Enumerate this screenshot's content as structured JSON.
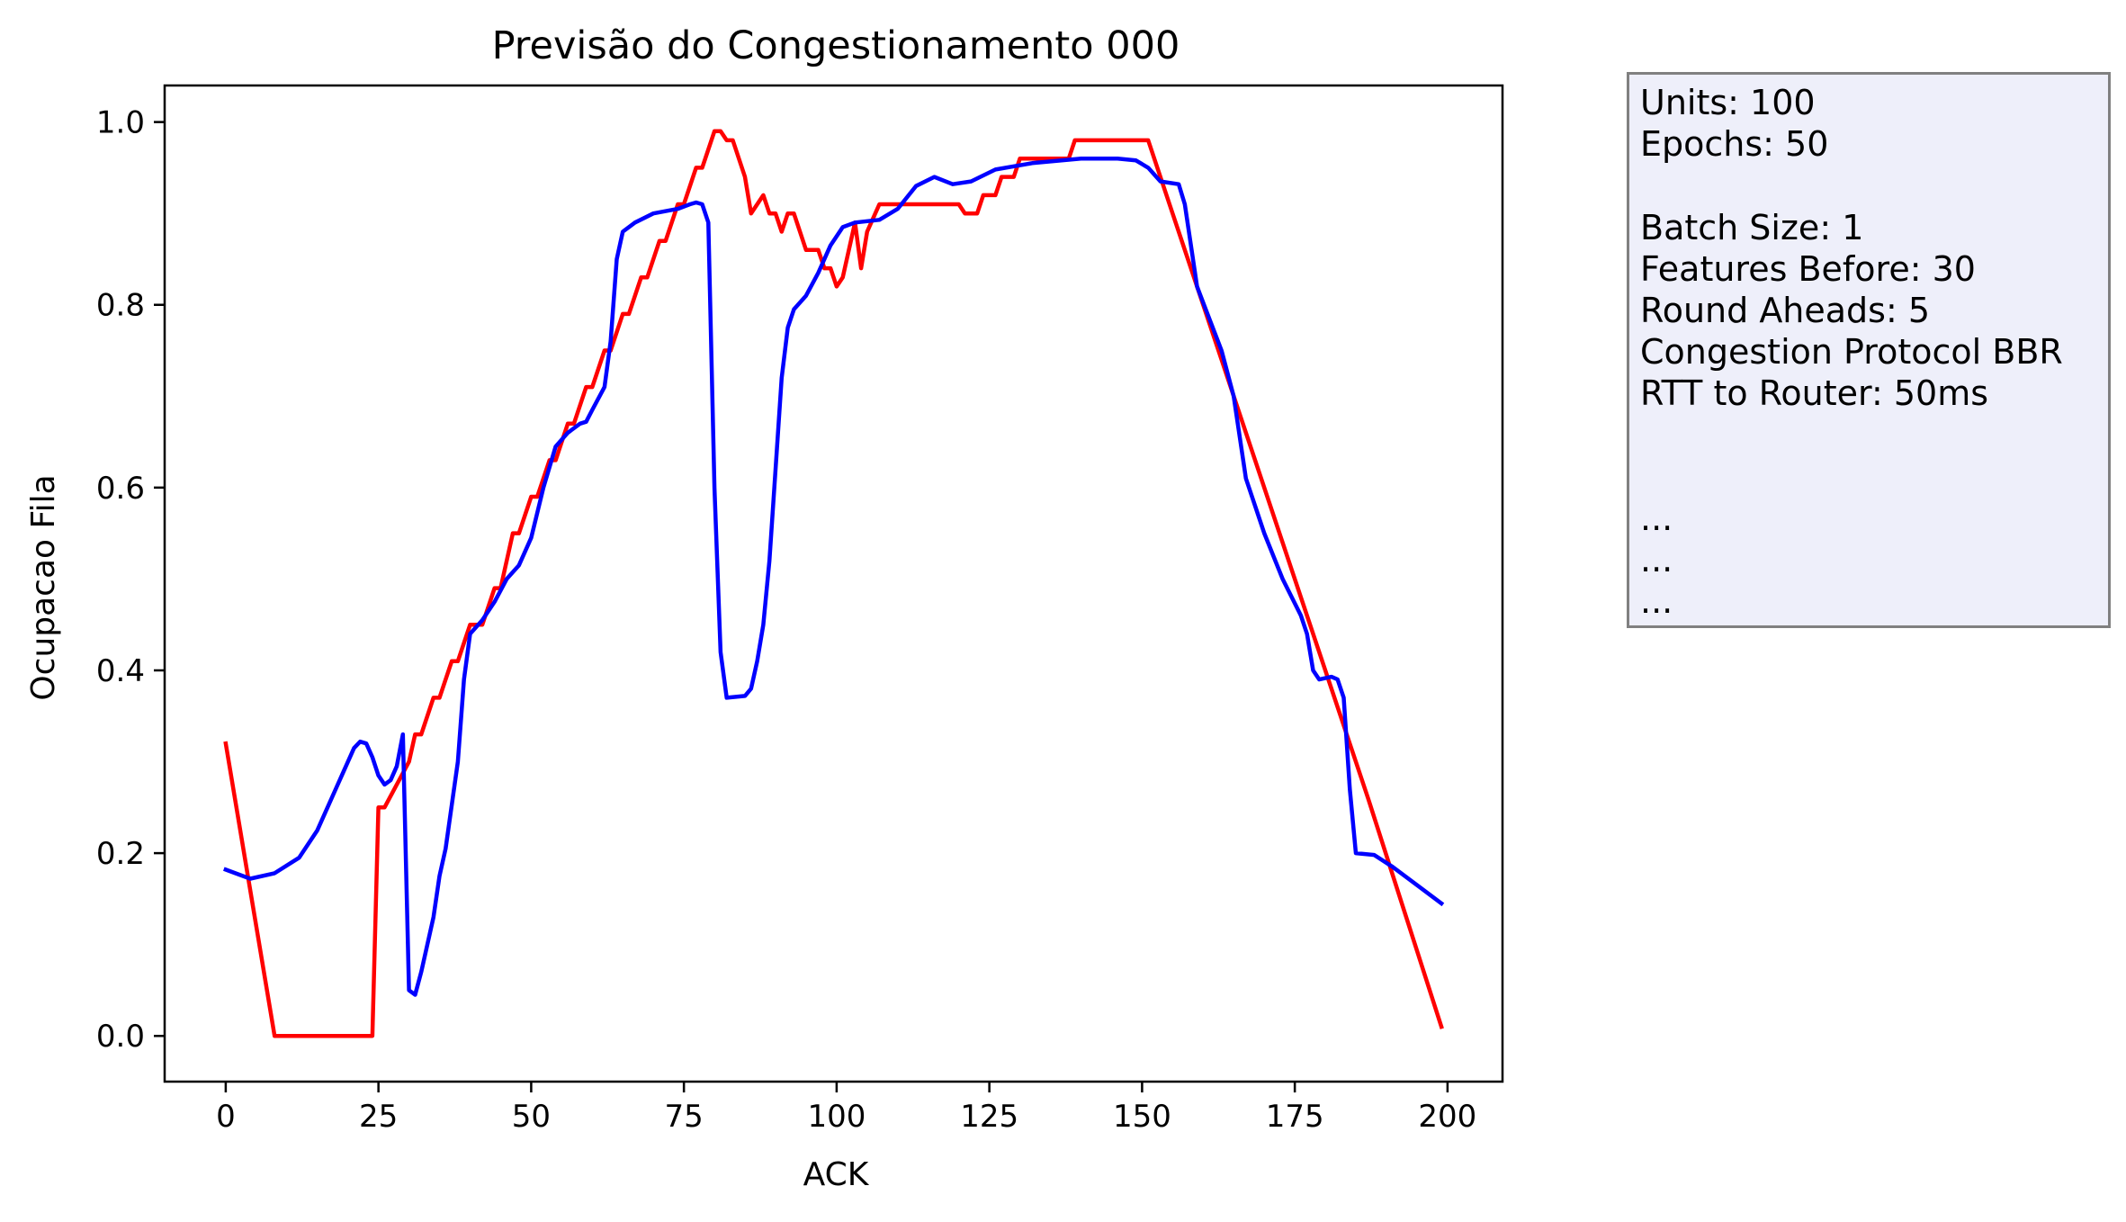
{
  "chart_data": {
    "type": "line",
    "title": "Previsão do Congestionamento 000",
    "xlabel": "ACK",
    "ylabel": "Ocupacao Fila",
    "xlim": [
      -10,
      209
    ],
    "ylim": [
      -0.05,
      1.04
    ],
    "xticks": [
      0,
      25,
      50,
      75,
      100,
      125,
      150,
      175,
      200
    ],
    "yticks": [
      0.0,
      0.2,
      0.4,
      0.6,
      0.8,
      1.0
    ],
    "grid": false,
    "series": [
      {
        "color": "#ff0000",
        "points": [
          [
            0,
            0.32
          ],
          [
            8,
            0.0
          ],
          [
            24,
            0.0
          ],
          [
            25,
            0.25
          ],
          [
            26,
            0.25
          ],
          [
            30,
            0.3
          ],
          [
            31,
            0.33
          ],
          [
            32,
            0.33
          ],
          [
            34,
            0.37
          ],
          [
            35,
            0.37
          ],
          [
            37,
            0.41
          ],
          [
            38,
            0.41
          ],
          [
            40,
            0.45
          ],
          [
            42,
            0.45
          ],
          [
            44,
            0.49
          ],
          [
            45,
            0.49
          ],
          [
            47,
            0.55
          ],
          [
            48,
            0.55
          ],
          [
            50,
            0.59
          ],
          [
            51,
            0.59
          ],
          [
            53,
            0.63
          ],
          [
            54,
            0.63
          ],
          [
            56,
            0.67
          ],
          [
            57,
            0.67
          ],
          [
            59,
            0.71
          ],
          [
            60,
            0.71
          ],
          [
            62,
            0.75
          ],
          [
            63,
            0.75
          ],
          [
            65,
            0.79
          ],
          [
            66,
            0.79
          ],
          [
            68,
            0.83
          ],
          [
            69,
            0.83
          ],
          [
            71,
            0.87
          ],
          [
            72,
            0.87
          ],
          [
            74,
            0.91
          ],
          [
            75,
            0.91
          ],
          [
            77,
            0.95
          ],
          [
            78,
            0.95
          ],
          [
            80,
            0.99
          ],
          [
            81,
            0.99
          ],
          [
            82,
            0.98
          ],
          [
            83,
            0.98
          ],
          [
            85,
            0.94
          ],
          [
            86,
            0.9
          ],
          [
            88,
            0.92
          ],
          [
            89,
            0.9
          ],
          [
            90,
            0.9
          ],
          [
            91,
            0.88
          ],
          [
            92,
            0.9
          ],
          [
            93,
            0.9
          ],
          [
            95,
            0.86
          ],
          [
            97,
            0.86
          ],
          [
            98,
            0.84
          ],
          [
            99,
            0.84
          ],
          [
            100,
            0.82
          ],
          [
            101,
            0.83
          ],
          [
            103,
            0.89
          ],
          [
            104,
            0.84
          ],
          [
            105,
            0.88
          ],
          [
            107,
            0.91
          ],
          [
            120,
            0.91
          ],
          [
            121,
            0.9
          ],
          [
            123,
            0.9
          ],
          [
            124,
            0.92
          ],
          [
            126,
            0.92
          ],
          [
            127,
            0.94
          ],
          [
            129,
            0.94
          ],
          [
            130,
            0.96
          ],
          [
            138,
            0.96
          ],
          [
            139,
            0.98
          ],
          [
            151,
            0.98
          ],
          [
            155,
            0.9
          ],
          [
            163,
            0.74
          ],
          [
            175,
            0.5
          ],
          [
            187,
            0.26
          ],
          [
            199,
            0.01
          ]
        ]
      },
      {
        "color": "#0000ff",
        "points": [
          [
            0,
            0.182
          ],
          [
            4,
            0.172
          ],
          [
            8,
            0.178
          ],
          [
            12,
            0.195
          ],
          [
            15,
            0.225
          ],
          [
            18,
            0.27
          ],
          [
            21,
            0.315
          ],
          [
            22,
            0.322
          ],
          [
            23,
            0.32
          ],
          [
            24,
            0.305
          ],
          [
            25,
            0.285
          ],
          [
            26,
            0.275
          ],
          [
            27,
            0.28
          ],
          [
            28,
            0.295
          ],
          [
            29,
            0.33
          ],
          [
            30,
            0.05
          ],
          [
            31,
            0.045
          ],
          [
            32,
            0.07
          ],
          [
            34,
            0.13
          ],
          [
            35,
            0.175
          ],
          [
            36,
            0.205
          ],
          [
            38,
            0.3
          ],
          [
            39,
            0.39
          ],
          [
            40,
            0.44
          ],
          [
            42,
            0.455
          ],
          [
            44,
            0.475
          ],
          [
            46,
            0.5
          ],
          [
            48,
            0.515
          ],
          [
            50,
            0.545
          ],
          [
            52,
            0.6
          ],
          [
            54,
            0.645
          ],
          [
            56,
            0.66
          ],
          [
            58,
            0.67
          ],
          [
            59,
            0.672
          ],
          [
            60,
            0.685
          ],
          [
            62,
            0.71
          ],
          [
            63,
            0.76
          ],
          [
            64,
            0.85
          ],
          [
            65,
            0.88
          ],
          [
            67,
            0.89
          ],
          [
            70,
            0.9
          ],
          [
            74,
            0.905
          ],
          [
            76,
            0.91
          ],
          [
            77,
            0.912
          ],
          [
            78,
            0.91
          ],
          [
            79,
            0.89
          ],
          [
            80,
            0.6
          ],
          [
            81,
            0.42
          ],
          [
            82,
            0.37
          ],
          [
            85,
            0.372
          ],
          [
            86,
            0.38
          ],
          [
            87,
            0.41
          ],
          [
            88,
            0.45
          ],
          [
            89,
            0.52
          ],
          [
            90,
            0.62
          ],
          [
            91,
            0.72
          ],
          [
            92,
            0.775
          ],
          [
            93,
            0.795
          ],
          [
            95,
            0.81
          ],
          [
            97,
            0.835
          ],
          [
            99,
            0.865
          ],
          [
            101,
            0.885
          ],
          [
            103,
            0.89
          ],
          [
            107,
            0.893
          ],
          [
            110,
            0.905
          ],
          [
            113,
            0.93
          ],
          [
            116,
            0.94
          ],
          [
            119,
            0.932
          ],
          [
            122,
            0.935
          ],
          [
            126,
            0.948
          ],
          [
            132,
            0.955
          ],
          [
            140,
            0.96
          ],
          [
            146,
            0.96
          ],
          [
            149,
            0.958
          ],
          [
            151,
            0.95
          ],
          [
            153,
            0.935
          ],
          [
            156,
            0.932
          ],
          [
            157,
            0.91
          ],
          [
            159,
            0.82
          ],
          [
            161,
            0.785
          ],
          [
            163,
            0.75
          ],
          [
            165,
            0.7
          ],
          [
            167,
            0.61
          ],
          [
            170,
            0.55
          ],
          [
            173,
            0.5
          ],
          [
            176,
            0.46
          ],
          [
            177,
            0.44
          ],
          [
            178,
            0.4
          ],
          [
            179,
            0.39
          ],
          [
            181,
            0.393
          ],
          [
            182,
            0.39
          ],
          [
            183,
            0.37
          ],
          [
            184,
            0.27
          ],
          [
            185,
            0.2
          ],
          [
            188,
            0.198
          ],
          [
            191,
            0.185
          ],
          [
            195,
            0.165
          ],
          [
            199,
            0.145
          ]
        ]
      }
    ]
  },
  "legend_box": {
    "lines": [
      "Units: 100",
      "Epochs: 50",
      "",
      "Batch Size: 1",
      "Features Before: 30",
      "Round Aheads: 5",
      "Congestion Protocol BBR",
      "RTT to Router: 50ms",
      "",
      "",
      "...",
      "...",
      "..."
    ]
  }
}
